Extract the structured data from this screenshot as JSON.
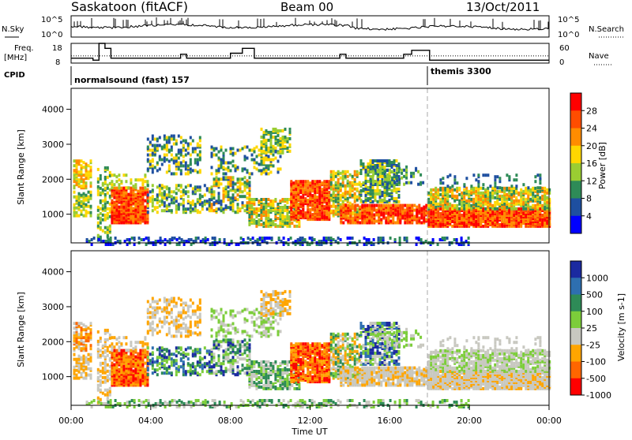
{
  "header": {
    "station": "Saskatoon (fitACF)",
    "beam": "Beam 00",
    "date": "13/Oct/2011"
  },
  "noise_panel": {
    "left_label": "N.Sky",
    "left_ticks": [
      "10^5",
      "10^0"
    ],
    "right_label": "N.Search",
    "right_ticks": [
      "10^5",
      "10^0"
    ]
  },
  "freq_panel": {
    "left_label_1": "Freq.",
    "left_label_2": "[MHz]",
    "left_ticks": [
      "18",
      "8"
    ],
    "right_label": "Nave",
    "right_ticks": [
      "60",
      "0"
    ]
  },
  "cpid_panel": {
    "label": "CPID",
    "modes": [
      {
        "name": "normalsound (fast) 157",
        "start_hour": 0
      },
      {
        "name": "themis 3300",
        "start_hour": 18
      }
    ]
  },
  "power_colorbar": {
    "label": "Power [dB]",
    "ticks": [
      "28",
      "24",
      "20",
      "16",
      "12",
      "8",
      "4"
    ],
    "colors": [
      "#ff0000",
      "#ff4d00",
      "#ff8c00",
      "#ffd700",
      "#9acd32",
      "#2e8b57",
      "#1e4fa0",
      "#0000ff"
    ]
  },
  "velocity_colorbar": {
    "label": "Velocity [m s-1]",
    "ticks": [
      "1000",
      "500",
      "100",
      "25",
      "-25",
      "-100",
      "-500",
      "-1000"
    ],
    "colors": [
      "#1b2aa0",
      "#2e6fb0",
      "#2e8b57",
      "#7ccd3a",
      "#c8c8c0",
      "#ffa500",
      "#ff6600",
      "#ff0000"
    ]
  },
  "chart_data": [
    {
      "type": "line",
      "name": "noise",
      "ylim_left": [
        0,
        5
      ],
      "ylim_right": [
        0,
        5
      ]
    },
    {
      "type": "line",
      "name": "frequency",
      "ylim_left": [
        8,
        18
      ],
      "ylim_right": [
        0,
        60
      ],
      "series": [
        {
          "name": "Freq",
          "x": [
            0,
            1.1,
            1.1,
            1.4,
            1.4,
            1.7,
            1.7,
            2.0,
            2.0,
            5.5,
            5.5,
            5.8,
            5.8,
            8.0,
            8.0,
            8.6,
            8.6,
            9.2,
            9.2,
            13.5,
            13.5,
            13.8,
            13.8,
            16.7,
            16.7,
            17.1,
            17.1,
            18.0,
            18.0,
            24
          ],
          "y": [
            10.5,
            10.5,
            9.5,
            9.5,
            18,
            18,
            15.5,
            15.5,
            10.5,
            10.5,
            12.5,
            12.5,
            10.5,
            10.5,
            13,
            13,
            15.5,
            15.5,
            10.5,
            10.5,
            12.5,
            12.5,
            10.5,
            10.5,
            12.5,
            12.5,
            14.5,
            14.5,
            9.5,
            9.5
          ]
        },
        {
          "name": "Nave",
          "x": [
            0,
            24
          ],
          "y": [
            22,
            22
          ]
        }
      ]
    },
    {
      "type": "heatmap",
      "name": "power",
      "xlabel": "",
      "ylabel": "Slant Range [km]",
      "xlim": [
        0,
        24
      ],
      "ylim": [
        180,
        4600
      ],
      "yticks": [
        "1000",
        "2000",
        "3000",
        "4000"
      ],
      "xticks": [
        "00:00",
        "04:00",
        "08:00",
        "12:00",
        "16:00",
        "20:00",
        "00:00"
      ]
    },
    {
      "type": "heatmap",
      "name": "velocity",
      "xlabel": "Time UT",
      "ylabel": "Slant Range [km]",
      "xlim": [
        0,
        24
      ],
      "ylim": [
        180,
        4600
      ],
      "yticks": [
        "1000",
        "2000",
        "3000",
        "4000"
      ],
      "xticks": [
        "00:00",
        "04:00",
        "08:00",
        "12:00",
        "16:00",
        "20:00",
        "00:00"
      ]
    }
  ]
}
